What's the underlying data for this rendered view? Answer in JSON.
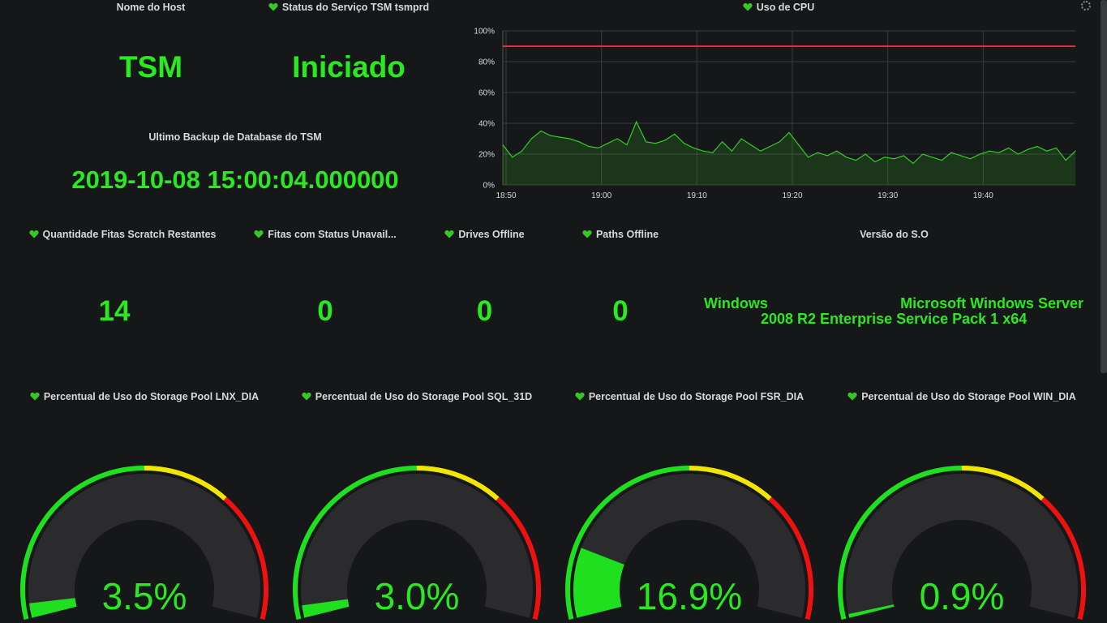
{
  "host_panel": {
    "title": "Nome do Host",
    "value": "TSM"
  },
  "service_panel": {
    "title": "Status do Serviço TSM tsmprd",
    "value": "Iniciado"
  },
  "backup_panel": {
    "title": "Ultimo Backup de Database do TSM",
    "value": "2019-10-08 15:00:04.000000"
  },
  "cpu_panel": {
    "title": "Uso de CPU",
    "threshold_color": "#e02f44",
    "line_color": "#37c828"
  },
  "stats": [
    {
      "title": "Quantidade Fitas Scratch Restantes",
      "value": "14"
    },
    {
      "title": "Fitas com Status Unavail...",
      "value": "0"
    },
    {
      "title": "Drives Offline",
      "value": "0"
    },
    {
      "title": "Paths Offline",
      "value": "0"
    }
  ],
  "os_panel": {
    "title": "Versão do S.O",
    "label": "Windows",
    "value_line1": "Microsoft Windows Server",
    "value_line2": "2008 R2 Enterprise Service Pack 1 x64"
  },
  "gauges": [
    {
      "title": "Percentual de Uso do Storage Pool LNX_DIA",
      "value": 3.5,
      "display": "3.5%"
    },
    {
      "title": "Percentual de Uso do Storage Pool SQL_31D",
      "value": 3.0,
      "display": "3.0%"
    },
    {
      "title": "Percentual de Uso do Storage Pool FSR_DIA",
      "value": 16.9,
      "display": "16.9%"
    },
    {
      "title": "Percentual de Uso do Storage Pool WIN_DIA",
      "value": 0.9,
      "display": "0.9%"
    }
  ],
  "colors": {
    "value_green": "#29e91f",
    "gauge_green": "#1ee01e",
    "gauge_yellow": "#f2e600",
    "gauge_red": "#ee1111"
  },
  "chart_data": {
    "type": "area",
    "title": "Uso de CPU",
    "x_ticks": [
      "18:50",
      "19:00",
      "19:10",
      "19:20",
      "19:30",
      "19:40"
    ],
    "y_ticks": [
      "0%",
      "20%",
      "40%",
      "60%",
      "80%",
      "100%"
    ],
    "ylim": [
      0,
      100
    ],
    "threshold": 90,
    "grid": true,
    "series": [
      {
        "x": [
          "18:50",
          "18:51",
          "18:52",
          "18:53",
          "18:54",
          "18:55",
          "18:56",
          "18:57",
          "18:58",
          "18:59",
          "19:00",
          "19:01",
          "19:02",
          "19:03",
          "19:04",
          "19:05",
          "19:06",
          "19:07",
          "19:08",
          "19:09",
          "19:10",
          "19:11",
          "19:12",
          "19:13",
          "19:14",
          "19:15",
          "19:16",
          "19:17",
          "19:18",
          "19:19",
          "19:20",
          "19:21",
          "19:22",
          "19:23",
          "19:24",
          "19:25",
          "19:26",
          "19:27",
          "19:28",
          "19:29",
          "19:30",
          "19:31",
          "19:32",
          "19:33",
          "19:34",
          "19:35",
          "19:36",
          "19:37",
          "19:38",
          "19:39",
          "19:40",
          "19:41",
          "19:42",
          "19:43",
          "19:44",
          "19:45",
          "19:46",
          "19:47",
          "19:48",
          "19:49",
          "19:50"
        ],
        "values": [
          26,
          18,
          22,
          30,
          35,
          32,
          31,
          30,
          28,
          25,
          24,
          27,
          30,
          26,
          41,
          28,
          27,
          29,
          33,
          27,
          24,
          22,
          21,
          28,
          22,
          30,
          26,
          22,
          25,
          28,
          34,
          26,
          18,
          21,
          19,
          22,
          18,
          16,
          20,
          15,
          18,
          17,
          19,
          14,
          20,
          18,
          16,
          21,
          19,
          17,
          20,
          22,
          21,
          24,
          20,
          23,
          25,
          22,
          24,
          16,
          22
        ]
      }
    ]
  }
}
